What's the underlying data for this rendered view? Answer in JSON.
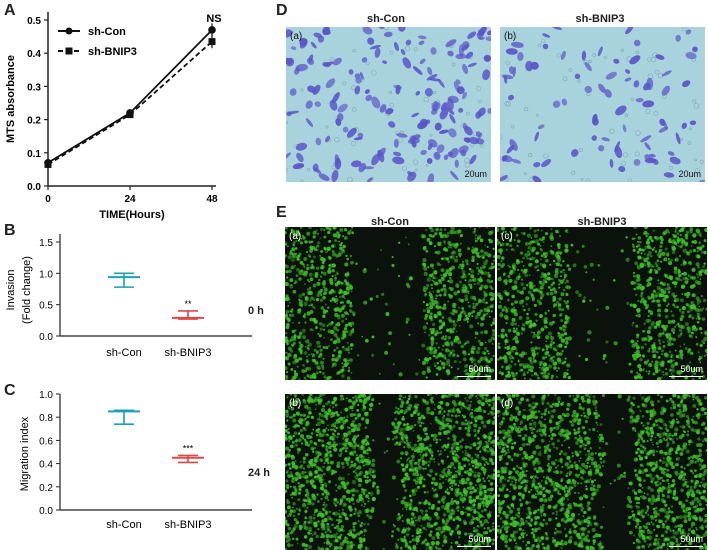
{
  "panel_labels": {
    "a": "A",
    "b": "B",
    "c": "C",
    "d": "D",
    "e": "E"
  },
  "chart_data": [
    {
      "panel": "A",
      "type": "line",
      "xlabel": "TIME(Hours)",
      "ylabel": "MTS absorbance",
      "xlim": [
        0,
        48
      ],
      "ylim": [
        0,
        0.5
      ],
      "xticks": [
        "0",
        "24",
        "48"
      ],
      "yticks": [
        "0.0",
        "0.1",
        "0.2",
        "0.3",
        "0.4",
        "0.5"
      ],
      "x": [
        0,
        24,
        48
      ],
      "series": [
        {
          "name": "sh-Con",
          "values": [
            0.07,
            0.22,
            0.47
          ],
          "errors": [
            0.01,
            0.01,
            0.02
          ],
          "style": "solid",
          "marker": "circle"
        },
        {
          "name": "sh-BNIP3",
          "values": [
            0.065,
            0.215,
            0.435
          ],
          "errors": [
            0.01,
            0.01,
            0.02
          ],
          "style": "dashed",
          "marker": "square"
        }
      ],
      "annotation": "NS",
      "legend": "top-left"
    },
    {
      "panel": "B",
      "type": "scatter",
      "ylabel_line1": "Invasion",
      "ylabel_line2": "(Fold change)",
      "categories": [
        "sh-Con",
        "sh-BNIP3"
      ],
      "ylim": [
        0,
        1.5
      ],
      "yticks": [
        "0.0",
        "0.5",
        "1.0",
        "1.5"
      ],
      "series": [
        {
          "name": "sh-Con",
          "mean": 0.94,
          "upper": 1.0,
          "lower": 0.78,
          "color": "#1aa0b0"
        },
        {
          "name": "sh-BNIP3",
          "mean": 0.29,
          "upper": 0.4,
          "lower": 0.27,
          "color": "#e04848"
        }
      ],
      "significance": "**"
    },
    {
      "panel": "C",
      "type": "scatter",
      "ylabel": "Migration index",
      "categories": [
        "sh-Con",
        "sh-BNIP3"
      ],
      "ylim": [
        0,
        1.0
      ],
      "yticks": [
        "0.0",
        "0.2",
        "0.4",
        "0.6",
        "0.8",
        "1.0"
      ],
      "series": [
        {
          "name": "sh-Con",
          "mean": 0.85,
          "upper": 0.86,
          "lower": 0.74,
          "color": "#1aa0b0"
        },
        {
          "name": "sh-BNIP3",
          "mean": 0.45,
          "upper": 0.47,
          "lower": 0.41,
          "color": "#e04848"
        }
      ],
      "significance": "***"
    }
  ],
  "panel_d": {
    "columns": [
      "sh-Con",
      "sh-BNIP3"
    ],
    "images": [
      {
        "tag": "(a)",
        "scale": "20um"
      },
      {
        "tag": "(b)",
        "scale": "20um"
      }
    ]
  },
  "panel_e": {
    "columns": [
      "sh-Con",
      "sh-BNIP3"
    ],
    "rows": [
      "0 h",
      "24 h"
    ],
    "images": [
      {
        "tag": "(a)",
        "scale": "50um"
      },
      {
        "tag": "(c)",
        "scale": "50um"
      },
      {
        "tag": "(b)",
        "scale": "50um"
      },
      {
        "tag": "(d)",
        "scale": "50um"
      }
    ]
  },
  "colors": {
    "teal": "#1aa0b0",
    "red": "#e04848",
    "stain_bg": "#a9d3dc",
    "cell": "#5a55c8",
    "fluor": "#3fbf2a"
  }
}
